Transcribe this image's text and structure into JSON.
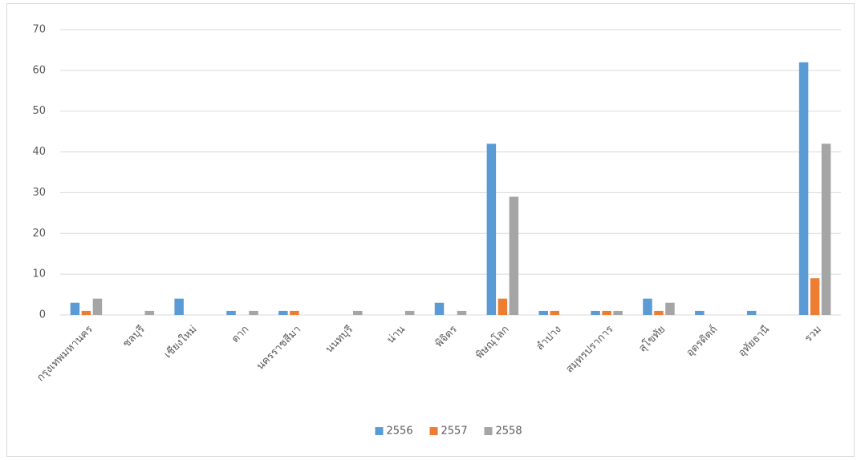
{
  "chart_data": {
    "type": "bar",
    "categories": [
      "กรุงเทพมหานคร",
      "ชลบุรี",
      "เชียงใหม่",
      "ตาก",
      "นครราชสีมา",
      "นนทบุรี",
      "น่าน",
      "พิจิตร",
      "พิษณุโลก",
      "ลำปาง",
      "สมุทรปราการ",
      "สุโขทัย",
      "อุตรดิตถ์",
      "อุทัยธานี",
      "รวม"
    ],
    "series": [
      {
        "name": "2556",
        "color": "#5b9bd5",
        "values": [
          3,
          0,
          4,
          1,
          1,
          0,
          0,
          3,
          42,
          1,
          1,
          4,
          1,
          1,
          62
        ]
      },
      {
        "name": "2557",
        "color": "#ed7d31",
        "values": [
          1,
          0,
          0,
          0,
          1,
          0,
          0,
          0,
          4,
          1,
          1,
          1,
          0,
          0,
          9
        ]
      },
      {
        "name": "2558",
        "color": "#a5a5a5",
        "values": [
          4,
          1,
          0,
          1,
          0,
          1,
          1,
          1,
          29,
          0,
          1,
          3,
          0,
          0,
          42
        ]
      }
    ],
    "ylim": [
      0,
      70
    ],
    "yticks": [
      0,
      10,
      20,
      30,
      40,
      50,
      60,
      70
    ],
    "grid": true,
    "legend": "bottom"
  }
}
